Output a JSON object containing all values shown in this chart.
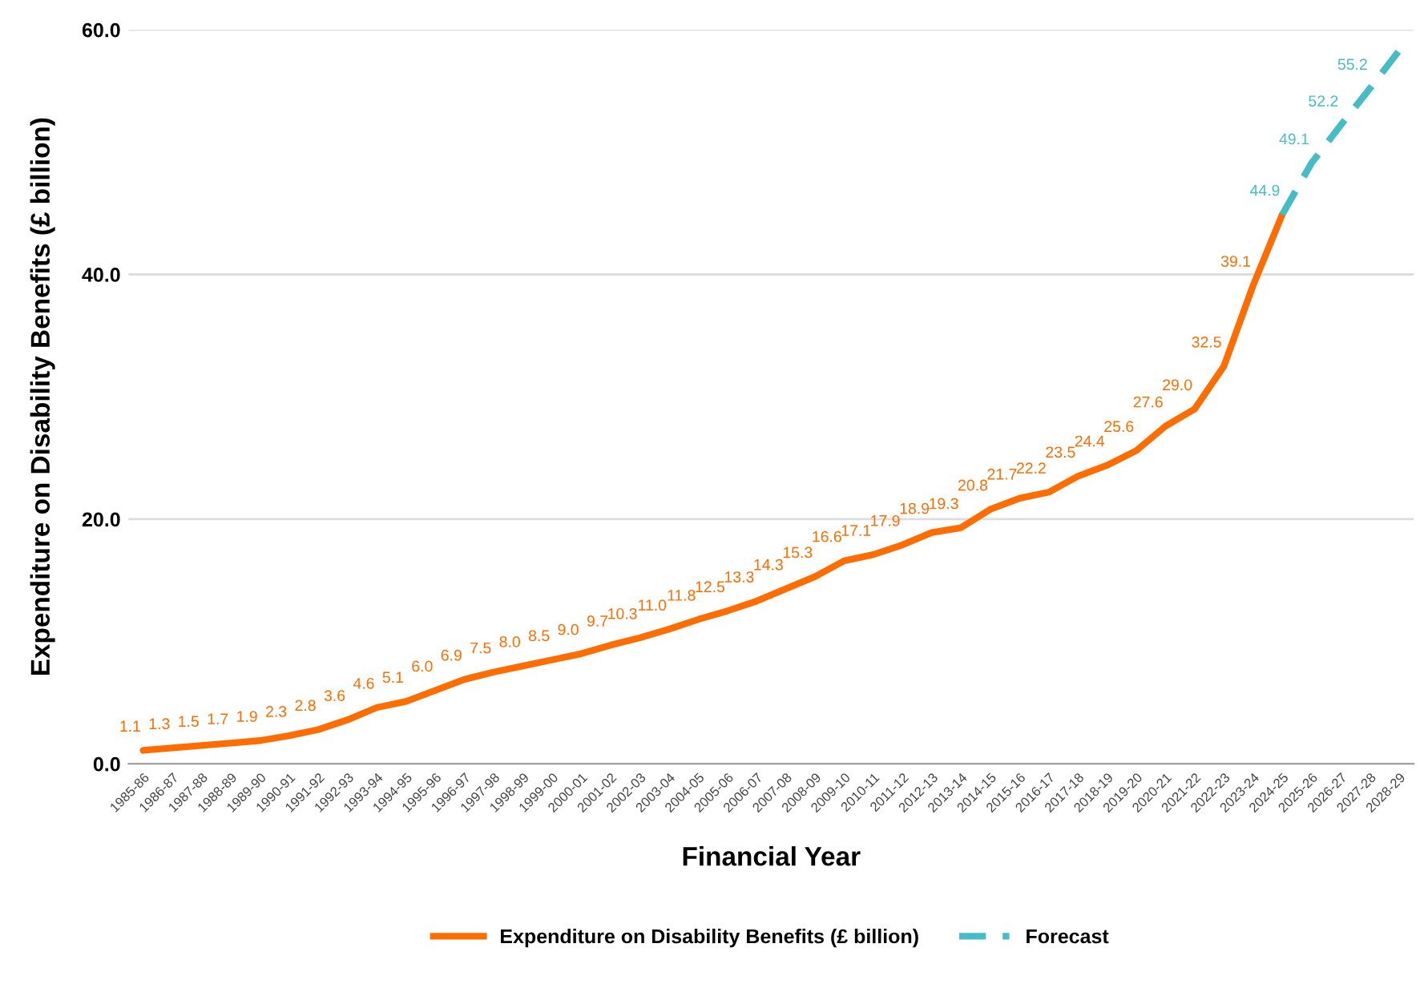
{
  "chart_data": {
    "type": "line",
    "xlabel": "Financial Year",
    "ylabel": "Expenditure on Disability Benefits (£ billion)",
    "categories": [
      "1985-86",
      "1986-87",
      "1987-88",
      "1988-89",
      "1989-90",
      "1990-91",
      "1991-92",
      "1992-93",
      "1993-94",
      "1994-95",
      "1995-96",
      "1996-97",
      "1997-98",
      "1998-99",
      "1999-00",
      "2000-01",
      "2001-02",
      "2002-03",
      "2003-04",
      "2004-05",
      "2005-06",
      "2006-07",
      "2007-08",
      "2008-09",
      "2009-10",
      "2010-11",
      "2011-12",
      "2012-13",
      "2013-14",
      "2014-15",
      "2015-16",
      "2016-17",
      "2017-18",
      "2018-19",
      "2019-20",
      "2020-21",
      "2021-22",
      "2022-23",
      "2023-24",
      "2024-25",
      "2025-26",
      "2026-27",
      "2027-28",
      "2028-29"
    ],
    "series": [
      {
        "name": "Expenditure on Disability Benefits (£ billion)",
        "color": "#ff6d01",
        "line_style": "solid",
        "values": [
          1.1,
          1.3,
          1.5,
          1.7,
          1.9,
          2.3,
          2.8,
          3.6,
          4.6,
          5.1,
          6.0,
          6.9,
          7.5,
          8.0,
          8.5,
          9.0,
          9.7,
          10.3,
          11.0,
          11.8,
          12.5,
          13.3,
          14.3,
          15.3,
          16.6,
          17.1,
          17.9,
          18.9,
          19.3,
          20.8,
          21.7,
          22.2,
          23.5,
          24.4,
          25.6,
          27.6,
          29.0,
          32.5,
          39.1,
          44.9,
          null,
          null,
          null,
          null
        ],
        "value_labels": [
          "1.1",
          "1.3",
          "1.5",
          "1.7",
          "1.9",
          "2.3",
          "2.8",
          "3.6",
          "4.6",
          "5.1",
          "6.0",
          "6.9",
          "7.5",
          "8.0",
          "8.5",
          "9.0",
          "9.7",
          "10.3",
          "11.0",
          "11.8",
          "12.5",
          "13.3",
          "14.3",
          "15.3",
          "16.6",
          "17.1",
          "17.9",
          "18.9",
          "19.3",
          "20.8",
          "21.7",
          "22.2",
          "23.5",
          "24.4",
          "25.6",
          "27.6",
          "29.0",
          "32.5",
          "39.1",
          null,
          null,
          null,
          null,
          null
        ]
      },
      {
        "name": "Forecast",
        "color": "#46bdc6",
        "line_style": "dashed",
        "values": [
          null,
          null,
          null,
          null,
          null,
          null,
          null,
          null,
          null,
          null,
          null,
          null,
          null,
          null,
          null,
          null,
          null,
          null,
          null,
          null,
          null,
          null,
          null,
          null,
          null,
          null,
          null,
          null,
          null,
          null,
          null,
          null,
          null,
          null,
          null,
          null,
          null,
          null,
          null,
          44.9,
          49.1,
          52.2,
          55.2,
          58.3
        ],
        "value_labels": [
          null,
          null,
          null,
          null,
          null,
          null,
          null,
          null,
          null,
          null,
          null,
          null,
          null,
          null,
          null,
          null,
          null,
          null,
          null,
          null,
          null,
          null,
          null,
          null,
          null,
          null,
          null,
          null,
          null,
          null,
          null,
          null,
          null,
          null,
          null,
          null,
          null,
          null,
          null,
          "44.9",
          "49.1",
          "52.2",
          "55.2",
          null
        ]
      }
    ],
    "ylim": [
      0,
      60
    ],
    "yticks": [
      {
        "value": 0,
        "label": "0.0"
      },
      {
        "value": 20,
        "label": "20.0"
      },
      {
        "value": 40,
        "label": "40.0"
      },
      {
        "value": 60,
        "label": "60.0"
      }
    ],
    "grid": "y",
    "legend": "bottom",
    "marker": "none"
  }
}
